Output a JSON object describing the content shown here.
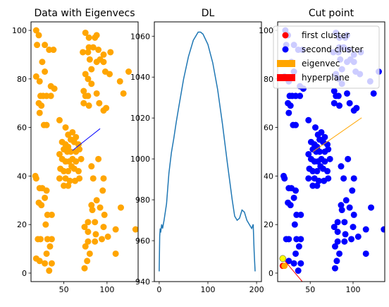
{
  "figure": {
    "background": "#ffffff"
  },
  "chart_data": [
    {
      "type": "scatter",
      "title": "Data with Eigenvecs",
      "xlim": [
        12,
        136
      ],
      "ylim": [
        -3.5,
        103.5
      ],
      "xticks": [
        50,
        100
      ],
      "yticks": [
        0,
        20,
        40,
        60,
        80,
        100
      ],
      "point_color": "#ffa500",
      "points": [
        [
          18,
          100
        ],
        [
          21,
          98
        ],
        [
          19,
          94
        ],
        [
          28,
          94
        ],
        [
          33,
          92
        ],
        [
          38,
          92
        ],
        [
          25,
          87
        ],
        [
          18,
          81
        ],
        [
          22,
          79
        ],
        [
          28,
          83
        ],
        [
          23,
          73
        ],
        [
          26,
          73
        ],
        [
          30,
          73
        ],
        [
          35,
          73
        ],
        [
          21,
          70
        ],
        [
          24,
          69
        ],
        [
          35,
          77
        ],
        [
          39,
          76
        ],
        [
          22,
          66
        ],
        [
          27,
          61
        ],
        [
          30,
          61
        ],
        [
          17,
          40
        ],
        [
          18,
          39
        ],
        [
          22,
          35
        ],
        [
          25,
          35
        ],
        [
          28,
          31
        ],
        [
          30,
          34
        ],
        [
          21,
          29
        ],
        [
          24,
          28
        ],
        [
          31,
          24
        ],
        [
          36,
          24
        ],
        [
          29,
          20
        ],
        [
          20,
          14
        ],
        [
          23,
          14
        ],
        [
          31,
          14
        ],
        [
          36,
          14
        ],
        [
          34,
          11
        ],
        [
          30,
          8
        ],
        [
          18,
          6
        ],
        [
          22,
          5
        ],
        [
          28,
          4
        ],
        [
          36,
          4
        ],
        [
          33,
          1
        ],
        [
          75,
          99
        ],
        [
          79,
          97
        ],
        [
          86,
          97
        ],
        [
          88,
          98
        ],
        [
          79,
          93
        ],
        [
          72,
          91
        ],
        [
          78,
          91
        ],
        [
          84,
          93
        ],
        [
          90,
          92
        ],
        [
          96,
          90
        ],
        [
          104,
          91
        ],
        [
          80,
          88
        ],
        [
          88,
          87
        ],
        [
          92,
          88
        ],
        [
          96,
          87
        ],
        [
          82,
          84
        ],
        [
          75,
          82
        ],
        [
          78,
          80
        ],
        [
          82,
          78
        ],
        [
          98,
          83
        ],
        [
          103,
          82
        ],
        [
          73,
          75
        ],
        [
          75,
          73
        ],
        [
          78,
          73
        ],
        [
          88,
          74
        ],
        [
          91,
          70
        ],
        [
          96,
          67
        ],
        [
          99,
          68
        ],
        [
          73,
          70
        ],
        [
          79,
          69
        ],
        [
          45,
          63
        ],
        [
          52,
          60
        ],
        [
          55,
          57
        ],
        [
          60,
          58
        ],
        [
          64,
          56
        ],
        [
          48,
          54
        ],
        [
          52,
          53
        ],
        [
          55,
          52
        ],
        [
          58,
          55
        ],
        [
          62,
          54
        ],
        [
          67,
          53
        ],
        [
          50,
          51
        ],
        [
          54,
          50
        ],
        [
          58,
          50
        ],
        [
          64,
          50
        ],
        [
          68,
          51
        ],
        [
          45,
          49
        ],
        [
          48,
          47
        ],
        [
          52,
          46
        ],
        [
          56,
          46
        ],
        [
          60,
          47
        ],
        [
          64,
          46
        ],
        [
          70,
          47
        ],
        [
          46,
          43
        ],
        [
          50,
          42
        ],
        [
          55,
          42
        ],
        [
          59,
          44
        ],
        [
          62,
          43
        ],
        [
          67,
          42
        ],
        [
          45,
          39
        ],
        [
          52,
          39
        ],
        [
          57,
          38
        ],
        [
          63,
          38
        ],
        [
          68,
          39
        ],
        [
          50,
          36
        ],
        [
          55,
          36
        ],
        [
          82,
          44
        ],
        [
          84,
          39
        ],
        [
          90,
          47
        ],
        [
          96,
          39
        ],
        [
          95,
          34
        ],
        [
          88,
          30
        ],
        [
          82,
          28
        ],
        [
          92,
          27
        ],
        [
          83,
          26
        ],
        [
          97,
          24
        ],
        [
          78,
          21
        ],
        [
          86,
          21
        ],
        [
          74,
          19
        ],
        [
          78,
          17
        ],
        [
          87,
          16
        ],
        [
          96,
          19
        ],
        [
          101,
          15
        ],
        [
          78,
          13
        ],
        [
          86,
          13
        ],
        [
          94,
          14
        ],
        [
          75,
          11
        ],
        [
          80,
          8
        ],
        [
          110,
          8
        ],
        [
          77,
          5
        ],
        [
          74,
          2
        ],
        [
          115,
          79
        ],
        [
          119,
          74
        ],
        [
          125,
          83
        ],
        [
          116,
          27
        ],
        [
          133,
          18
        ],
        [
          110,
          18
        ]
      ],
      "eigenvector": {
        "color": "#0000ff",
        "from": [
          60,
          50.5
        ],
        "to": [
          92,
          59.5
        ]
      }
    },
    {
      "type": "line",
      "title": "DL",
      "xlim": [
        -10,
        210
      ],
      "ylim": [
        940,
        1067
      ],
      "xticks": [
        0,
        100,
        200
      ],
      "yticks": [
        940,
        960,
        980,
        1000,
        1020,
        1040,
        1060
      ],
      "color": "#1f77b4",
      "x": [
        0,
        1,
        2,
        3,
        5,
        7,
        10,
        15,
        20,
        25,
        30,
        35,
        40,
        50,
        60,
        70,
        80,
        85,
        90,
        100,
        110,
        120,
        130,
        140,
        150,
        155,
        160,
        165,
        170,
        175,
        180,
        185,
        190,
        193,
        195,
        197
      ],
      "y": [
        945,
        962,
        966,
        964,
        968,
        966,
        970,
        978,
        993,
        1003,
        1010,
        1018,
        1025,
        1039,
        1050,
        1058,
        1062,
        1062,
        1061,
        1056,
        1047,
        1034,
        1017,
        998,
        980,
        972,
        970,
        971,
        975,
        974,
        970,
        968,
        966,
        968,
        955,
        945
      ]
    },
    {
      "type": "scatter",
      "title": "Cut point",
      "xlim": [
        12,
        137
      ],
      "ylim": [
        -3.5,
        103.5
      ],
      "xticks": [
        50,
        100
      ],
      "yticks": [
        0,
        20,
        40,
        60,
        80,
        100
      ],
      "series": [
        {
          "name": "first cluster",
          "color": "#ff0000",
          "points": [
            [
              18,
              3
            ]
          ]
        },
        {
          "name": "second cluster",
          "color": "#0000ff",
          "points": [
            [
              21,
              100
            ],
            [
              24,
              98
            ],
            [
              22,
              94
            ],
            [
              31,
              94
            ],
            [
              36,
              92
            ],
            [
              41,
              92
            ],
            [
              28,
              87
            ],
            [
              20,
              81
            ],
            [
              25,
              79
            ],
            [
              31,
              83
            ],
            [
              26,
              73
            ],
            [
              29,
              73
            ],
            [
              33,
              73
            ],
            [
              38,
              73
            ],
            [
              24,
              70
            ],
            [
              27,
              69
            ],
            [
              38,
              77
            ],
            [
              42,
              76
            ],
            [
              25,
              66
            ],
            [
              30,
              61
            ],
            [
              33,
              61
            ],
            [
              19,
              40
            ],
            [
              20,
              39
            ],
            [
              25,
              35
            ],
            [
              28,
              35
            ],
            [
              31,
              31
            ],
            [
              33,
              34
            ],
            [
              24,
              29
            ],
            [
              27,
              28
            ],
            [
              34,
              24
            ],
            [
              39,
              24
            ],
            [
              32,
              20
            ],
            [
              22,
              14
            ],
            [
              25,
              14
            ],
            [
              34,
              14
            ],
            [
              39,
              14
            ],
            [
              37,
              11
            ],
            [
              33,
              8
            ],
            [
              25,
              5
            ],
            [
              31,
              4
            ],
            [
              39,
              4
            ],
            [
              36,
              1
            ],
            [
              80,
              99
            ],
            [
              84,
              97
            ],
            [
              91,
              97
            ],
            [
              93,
              98
            ],
            [
              84,
              93
            ],
            [
              77,
              91
            ],
            [
              83,
              91
            ],
            [
              89,
              93
            ],
            [
              95,
              92
            ],
            [
              101,
              90
            ],
            [
              109,
              91
            ],
            [
              85,
              88
            ],
            [
              93,
              87
            ],
            [
              97,
              88
            ],
            [
              101,
              87
            ],
            [
              87,
              84
            ],
            [
              80,
              82
            ],
            [
              83,
              80
            ],
            [
              87,
              78
            ],
            [
              103,
              83
            ],
            [
              108,
              82
            ],
            [
              78,
              75
            ],
            [
              80,
              73
            ],
            [
              83,
              73
            ],
            [
              93,
              74
            ],
            [
              96,
              70
            ],
            [
              101,
              67
            ],
            [
              104,
              68
            ],
            [
              78,
              70
            ],
            [
              84,
              69
            ],
            [
              48,
              63
            ],
            [
              56,
              60
            ],
            [
              59,
              57
            ],
            [
              63,
              58
            ],
            [
              67,
              56
            ],
            [
              51,
              54
            ],
            [
              55,
              53
            ],
            [
              58,
              52
            ],
            [
              61,
              55
            ],
            [
              65,
              54
            ],
            [
              70,
              53
            ],
            [
              53,
              51
            ],
            [
              57,
              50
            ],
            [
              61,
              50
            ],
            [
              67,
              50
            ],
            [
              71,
              51
            ],
            [
              48,
              49
            ],
            [
              51,
              47
            ],
            [
              55,
              46
            ],
            [
              59,
              46
            ],
            [
              63,
              47
            ],
            [
              67,
              46
            ],
            [
              73,
              47
            ],
            [
              49,
              43
            ],
            [
              53,
              42
            ],
            [
              58,
              42
            ],
            [
              62,
              44
            ],
            [
              65,
              43
            ],
            [
              70,
              42
            ],
            [
              48,
              39
            ],
            [
              55,
              39
            ],
            [
              60,
              38
            ],
            [
              66,
              38
            ],
            [
              71,
              39
            ],
            [
              53,
              36
            ],
            [
              58,
              36
            ],
            [
              86,
              44
            ],
            [
              89,
              39
            ],
            [
              94,
              47
            ],
            [
              101,
              39
            ],
            [
              99,
              34
            ],
            [
              92,
              30
            ],
            [
              86,
              28
            ],
            [
              96,
              27
            ],
            [
              87,
              26
            ],
            [
              101,
              24
            ],
            [
              82,
              21
            ],
            [
              90,
              21
            ],
            [
              78,
              19
            ],
            [
              82,
              17
            ],
            [
              91,
              16
            ],
            [
              100,
              19
            ],
            [
              106,
              15
            ],
            [
              82,
              13
            ],
            [
              90,
              13
            ],
            [
              98,
              14
            ],
            [
              79,
              11
            ],
            [
              84,
              8
            ],
            [
              115,
              8
            ],
            [
              81,
              5
            ],
            [
              79,
              2
            ],
            [
              120,
              79
            ],
            [
              124,
              74
            ],
            [
              130,
              83
            ],
            [
              121,
              27
            ],
            [
              136,
              18
            ],
            [
              115,
              18
            ]
          ]
        },
        {
          "name": "eigenvec",
          "color": "#ffa500",
          "type": "arrow",
          "from": [
            53,
            50
          ],
          "to": [
            110,
            64
          ]
        },
        {
          "name": "hyperplane",
          "color": "#ff0000",
          "type": "line",
          "from": [
            18,
            6
          ],
          "to": [
            42,
            -4
          ]
        }
      ],
      "highlight_point": {
        "x": 18,
        "y": 6,
        "color": "#ffff00"
      },
      "extra_point": {
        "x": 20,
        "y": 3,
        "color": "#ffa500"
      },
      "legend": {
        "placement": "upper-left",
        "entries": [
          {
            "label": "first cluster",
            "marker": "dot",
            "color": "#ff0000"
          },
          {
            "label": "second cluster",
            "marker": "dot",
            "color": "#0000ff"
          },
          {
            "label": "eigenvec",
            "marker": "patch",
            "color": "#ffa500"
          },
          {
            "label": "hyperplane",
            "marker": "patch",
            "color": "#ff0000"
          }
        ]
      }
    }
  ]
}
